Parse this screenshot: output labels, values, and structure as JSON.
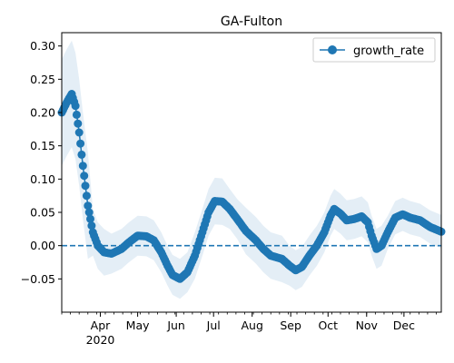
{
  "chart_data": {
    "type": "line",
    "title": "GA-Fulton",
    "xlabel": "",
    "ylabel": "",
    "ylim": [
      -0.1,
      0.32
    ],
    "grid": false,
    "legend": {
      "position": "top-right",
      "entries": [
        "growth_rate"
      ]
    },
    "colors": {
      "series": "#1f77b4",
      "band": "#1f77b4",
      "baseline": "#1f77b4"
    },
    "y_ticks": [
      -0.05,
      0.0,
      0.05,
      0.1,
      0.15,
      0.2,
      0.25,
      0.3
    ],
    "y_tick_labels": [
      "−0.05",
      "0.00",
      "0.05",
      "0.10",
      "0.15",
      "0.20",
      "0.25",
      "0.30"
    ],
    "x_range": [
      "2020-03-01",
      "2020-12-31"
    ],
    "x_ticks": [
      {
        "date": "2020-04-01",
        "label": "Apr",
        "sublabel": "2020"
      },
      {
        "date": "2020-05-01",
        "label": "May"
      },
      {
        "date": "2020-06-01",
        "label": "Jun"
      },
      {
        "date": "2020-07-01",
        "label": "Jul"
      },
      {
        "date": "2020-08-01",
        "label": "Aug"
      },
      {
        "date": "2020-09-01",
        "label": "Sep"
      },
      {
        "date": "2020-10-01",
        "label": "Oct"
      },
      {
        "date": "2020-11-01",
        "label": "Nov"
      },
      {
        "date": "2020-12-01",
        "label": "Dec"
      }
    ],
    "baseline": {
      "value": 0.0,
      "style": "dashed"
    },
    "series": [
      {
        "name": "growth_rate",
        "band_width": [
          0.08,
          0.08,
          0.08,
          0.035,
          0.03,
          0.03,
          0.03,
          0.03,
          0.03,
          0.035,
          0.035,
          0.03,
          0.035,
          0.035,
          0.03,
          0.03,
          0.03,
          0.03,
          0.03,
          0.03,
          0.03,
          0.025,
          0.025,
          0.025
        ],
        "points": [
          [
            "2020-03-01",
            0.2
          ],
          [
            "2020-03-05",
            0.215
          ],
          [
            "2020-03-09",
            0.228
          ],
          [
            "2020-03-12",
            0.21
          ],
          [
            "2020-03-15",
            0.17
          ],
          [
            "2020-03-18",
            0.12
          ],
          [
            "2020-03-22",
            0.06
          ],
          [
            "2020-03-26",
            0.02
          ],
          [
            "2020-03-30",
            0.0
          ],
          [
            "2020-04-04",
            -0.01
          ],
          [
            "2020-04-10",
            -0.012
          ],
          [
            "2020-04-18",
            -0.005
          ],
          [
            "2020-04-24",
            0.005
          ],
          [
            "2020-05-01",
            0.015
          ],
          [
            "2020-05-08",
            0.014
          ],
          [
            "2020-05-14",
            0.008
          ],
          [
            "2020-05-20",
            -0.01
          ],
          [
            "2020-05-25",
            -0.03
          ],
          [
            "2020-05-29",
            -0.044
          ],
          [
            "2020-06-04",
            -0.05
          ],
          [
            "2020-06-10",
            -0.04
          ],
          [
            "2020-06-16",
            -0.015
          ],
          [
            "2020-06-22",
            0.02
          ],
          [
            "2020-06-27",
            0.05
          ],
          [
            "2020-07-02",
            0.067
          ],
          [
            "2020-07-08",
            0.066
          ],
          [
            "2020-07-14",
            0.055
          ],
          [
            "2020-07-20",
            0.04
          ],
          [
            "2020-07-27",
            0.022
          ],
          [
            "2020-08-04",
            0.008
          ],
          [
            "2020-08-10",
            -0.005
          ],
          [
            "2020-08-16",
            -0.015
          ],
          [
            "2020-08-25",
            -0.02
          ],
          [
            "2020-08-31",
            -0.03
          ],
          [
            "2020-09-05",
            -0.037
          ],
          [
            "2020-09-10",
            -0.032
          ],
          [
            "2020-09-16",
            -0.015
          ],
          [
            "2020-09-22",
            0.0
          ],
          [
            "2020-09-28",
            0.02
          ],
          [
            "2020-10-03",
            0.045
          ],
          [
            "2020-10-06",
            0.055
          ],
          [
            "2020-10-11",
            0.048
          ],
          [
            "2020-10-16",
            0.038
          ],
          [
            "2020-10-22",
            0.04
          ],
          [
            "2020-10-28",
            0.044
          ],
          [
            "2020-11-02",
            0.035
          ],
          [
            "2020-11-05",
            0.015
          ],
          [
            "2020-11-09",
            -0.005
          ],
          [
            "2020-11-13",
            0.0
          ],
          [
            "2020-11-18",
            0.02
          ],
          [
            "2020-11-24",
            0.042
          ],
          [
            "2020-11-30",
            0.047
          ],
          [
            "2020-12-06",
            0.042
          ],
          [
            "2020-12-14",
            0.038
          ],
          [
            "2020-12-22",
            0.028
          ],
          [
            "2020-12-31",
            0.021
          ]
        ]
      }
    ]
  }
}
